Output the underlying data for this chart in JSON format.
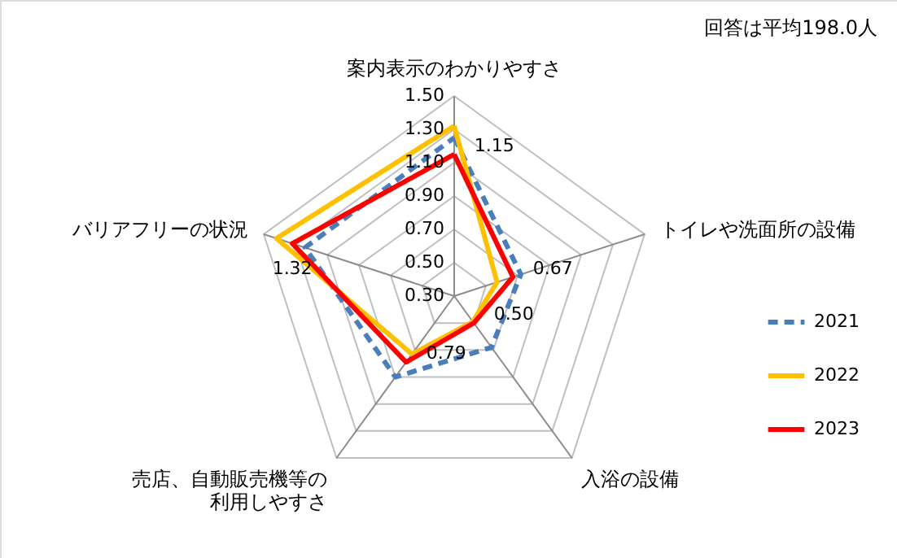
{
  "chart_data": {
    "type": "radar",
    "categories": [
      "案内表示のわかりやすさ",
      "トイレや洗面所の設備",
      "入浴の設備",
      "売店、自動販売機等の利用しやすさ",
      "バリアフリーの状況"
    ],
    "series": [
      {
        "name": "2021",
        "color": "#4a7ebb",
        "line_style": "dashed",
        "values": [
          1.25,
          0.72,
          0.68,
          0.9,
          1.24
        ]
      },
      {
        "name": "2022",
        "color": "#ffc000",
        "line_style": "solid",
        "values": [
          1.32,
          0.57,
          0.49,
          0.73,
          1.42
        ]
      },
      {
        "name": "2023",
        "color": "#ff0000",
        "line_style": "solid",
        "values": [
          1.15,
          0.67,
          0.5,
          0.79,
          1.32
        ],
        "value_labels": [
          "1.15",
          "0.67",
          "0.50",
          "0.79",
          "1.32"
        ]
      }
    ],
    "ylim": [
      0.3,
      1.5
    ],
    "yticks": [
      {
        "value": 0.3,
        "label": "0.30"
      },
      {
        "value": 0.5,
        "label": "0.50"
      },
      {
        "value": 0.7,
        "label": "0.70"
      },
      {
        "value": 0.9,
        "label": "0.90"
      },
      {
        "value": 1.1,
        "label": "1.10"
      },
      {
        "value": 1.3,
        "label": "1.30"
      },
      {
        "value": 1.5,
        "label": "1.50"
      }
    ],
    "grid": true,
    "legend": "right",
    "marker": "none",
    "annotations": [
      "回答は平均198.0人"
    ]
  }
}
